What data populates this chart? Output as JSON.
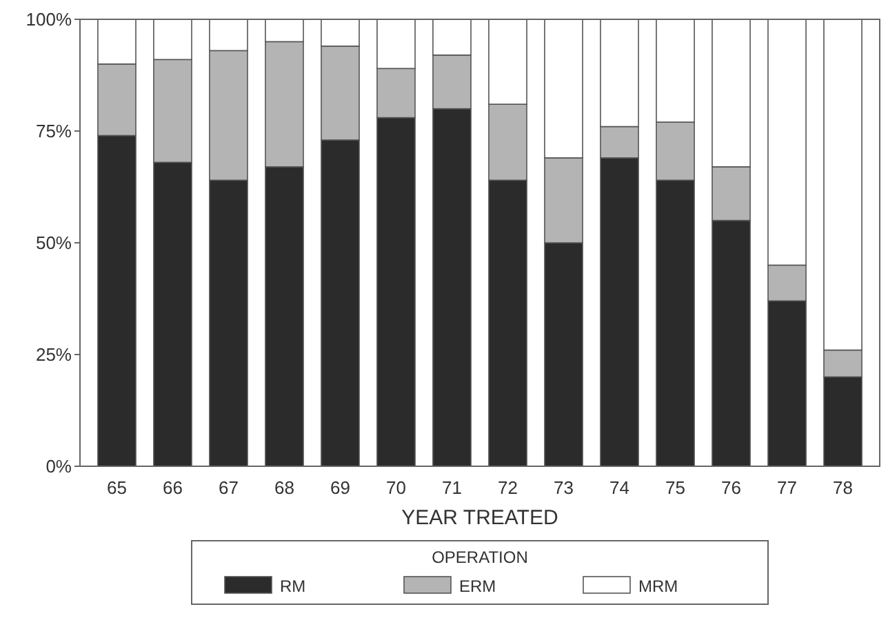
{
  "chart_data": {
    "type": "bar",
    "stacked": true,
    "xlabel": "YEAR TREATED",
    "legend_title": "OPERATION",
    "legend": "bottom",
    "categories": [
      "65",
      "66",
      "67",
      "68",
      "69",
      "70",
      "71",
      "72",
      "73",
      "74",
      "75",
      "76",
      "77",
      "78"
    ],
    "ylim": [
      0,
      100
    ],
    "yticks": [
      {
        "value": 0,
        "label": "0%"
      },
      {
        "value": 25,
        "label": "25%"
      },
      {
        "value": 50,
        "label": "50%"
      },
      {
        "value": 75,
        "label": "75%"
      },
      {
        "value": 100,
        "label": "100%"
      }
    ],
    "grid": false,
    "series": [
      {
        "name": "RM",
        "color": "#2b2b2b",
        "values": [
          74,
          68,
          64,
          67,
          73,
          78,
          80,
          64,
          50,
          69,
          64,
          55,
          37,
          20
        ]
      },
      {
        "name": "ERM",
        "color": "#b4b4b4",
        "values": [
          16,
          23,
          29,
          28,
          21,
          11,
          12,
          17,
          19,
          7,
          13,
          12,
          8,
          6
        ]
      },
      {
        "name": "MRM",
        "color": "#ffffff",
        "values": [
          10,
          9,
          7,
          5,
          6,
          11,
          8,
          19,
          31,
          24,
          23,
          33,
          55,
          74
        ]
      }
    ]
  }
}
